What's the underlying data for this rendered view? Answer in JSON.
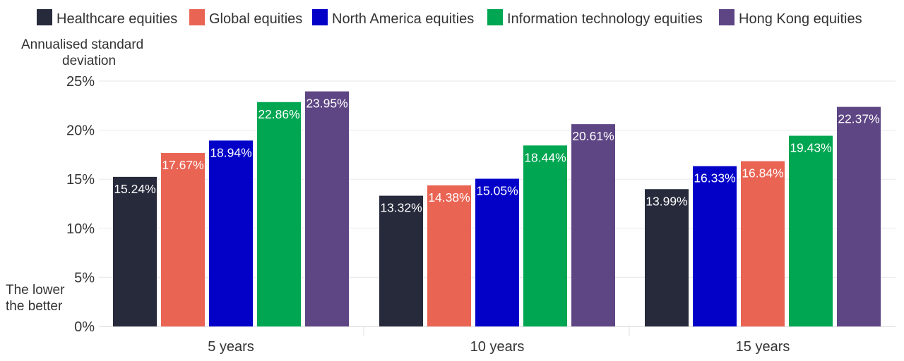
{
  "chart_data": {
    "type": "bar",
    "ylabel": "Annualised standard deviation",
    "ylabel_lines": [
      "Annualised standard",
      "deviation"
    ],
    "annotation": "The lower the better",
    "annotation_lines": [
      "The lower",
      "the better"
    ],
    "categories": [
      "5 years",
      "10 years",
      "15 years"
    ],
    "ylim": [
      0,
      25
    ],
    "yticks": [
      0,
      5,
      10,
      15,
      20,
      25
    ],
    "ytick_labels": [
      "0%",
      "5%",
      "10%",
      "15%",
      "20%",
      "25%"
    ],
    "grid": true,
    "legend_position": "top",
    "series": [
      {
        "name": "Healthcare equities",
        "color": "#262a3b"
      },
      {
        "name": "Global equities",
        "color": "#ea6454"
      },
      {
        "name": "North America equities",
        "color": "#0300c8"
      },
      {
        "name": "Information technology equities",
        "color": "#00a651"
      },
      {
        "name": "Hong Kong equities",
        "color": "#5e4584"
      }
    ],
    "groups": [
      {
        "category": "5 years",
        "bars": [
          {
            "series": "Healthcare equities",
            "value": 15.24,
            "label": "15.24%"
          },
          {
            "series": "Global equities",
            "value": 17.67,
            "label": "17.67%"
          },
          {
            "series": "North America equities",
            "value": 18.94,
            "label": "18.94%"
          },
          {
            "series": "Information technology equities",
            "value": 22.86,
            "label": "22.86%"
          },
          {
            "series": "Hong Kong equities",
            "value": 23.95,
            "label": "23.95%"
          }
        ]
      },
      {
        "category": "10 years",
        "bars": [
          {
            "series": "Healthcare equities",
            "value": 13.32,
            "label": "13.32%"
          },
          {
            "series": "Global equities",
            "value": 14.38,
            "label": "14.38%"
          },
          {
            "series": "North America equities",
            "value": 15.05,
            "label": "15.05%"
          },
          {
            "series": "Information technology equities",
            "value": 18.44,
            "label": "18.44%"
          },
          {
            "series": "Hong Kong equities",
            "value": 20.61,
            "label": "20.61%"
          }
        ]
      },
      {
        "category": "15 years",
        "bars": [
          {
            "series": "Healthcare equities",
            "value": 13.99,
            "label": "13.99%"
          },
          {
            "series": "North America equities",
            "value": 16.33,
            "label": "16.33%"
          },
          {
            "series": "Global equities",
            "value": 16.84,
            "label": "16.84%"
          },
          {
            "series": "Information technology equities",
            "value": 19.43,
            "label": "19.43%"
          },
          {
            "series": "Hong Kong equities",
            "value": 22.37,
            "label": "22.37%"
          }
        ]
      }
    ]
  }
}
